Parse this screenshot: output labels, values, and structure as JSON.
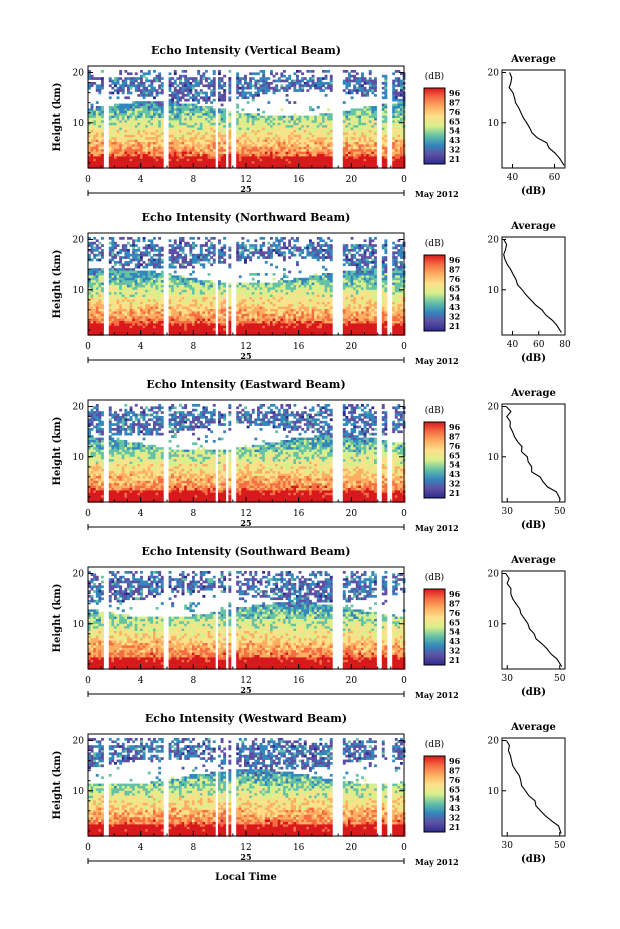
{
  "shared": {
    "colorbar_unit": "(dB)",
    "colorbar_ticks": [
      "96",
      "87",
      "76",
      "65",
      "54",
      "43",
      "32",
      "21"
    ],
    "colorbar_colors": [
      "#d7191c",
      "#f46d43",
      "#fdae61",
      "#fee08b",
      "#d9ef8b",
      "#66c2a5",
      "#3288bd",
      "#5e4fa2",
      "#2b2b8f"
    ],
    "avg_title": "Average",
    "avg_xlabel": "(dB)",
    "ylabel": "Height (km)",
    "x_ticks": [
      "0",
      "4",
      "8",
      "12",
      "16",
      "20",
      "0"
    ],
    "date_day": "25",
    "date_month": "May 2012",
    "xlabel_bottom": "Local Time"
  },
  "chart_data": [
    {
      "type": "heatmap",
      "title": "Echo Intensity (Vertical Beam)",
      "y_ticks": [
        "20",
        "10"
      ],
      "avg_y_ticks": [
        "20",
        "10"
      ],
      "avg_x_ticks": [
        "40",
        "60"
      ],
      "xlim": [
        0,
        24
      ],
      "ylim": [
        1,
        20.5
      ],
      "avg_xlim": [
        35,
        65
      ],
      "gaps": [
        [
          1.0,
          1.4
        ],
        [
          5.7,
          6.1
        ],
        [
          9.5,
          9.8
        ],
        [
          10.3,
          10.6
        ],
        [
          10.8,
          11.1
        ],
        [
          18.5,
          19.2
        ],
        [
          21.8,
          22.2
        ],
        [
          22.7,
          23.0
        ]
      ],
      "avg_profile": [
        [
          64,
          1.5
        ],
        [
          62,
          3
        ],
        [
          60,
          4
        ],
        [
          58,
          5
        ],
        [
          56,
          6
        ],
        [
          52,
          7
        ],
        [
          50,
          8
        ],
        [
          48,
          9
        ],
        [
          46,
          10
        ],
        [
          45,
          11
        ],
        [
          44,
          12
        ],
        [
          43,
          13
        ],
        [
          42,
          14
        ],
        [
          41,
          15
        ],
        [
          40,
          16
        ],
        [
          39,
          17
        ],
        [
          40,
          18
        ],
        [
          39,
          19
        ],
        [
          38,
          20
        ]
      ]
    },
    {
      "type": "heatmap",
      "title": "Echo Intensity (Northward Beam)",
      "y_ticks": [
        "20",
        "10"
      ],
      "avg_y_ticks": [
        "20",
        "10"
      ],
      "avg_x_ticks": [
        "40",
        "60",
        "80"
      ],
      "xlim": [
        0,
        24
      ],
      "ylim": [
        1,
        20.5
      ],
      "avg_xlim": [
        32,
        80
      ],
      "gaps": [
        [
          1.0,
          1.4
        ],
        [
          5.7,
          6.1
        ],
        [
          9.5,
          9.8
        ],
        [
          10.3,
          10.6
        ],
        [
          10.8,
          11.1
        ],
        [
          18.5,
          19.2
        ],
        [
          21.8,
          22.2
        ],
        [
          22.7,
          23.0
        ]
      ],
      "avg_profile": [
        [
          78,
          1.5
        ],
        [
          74,
          3
        ],
        [
          70,
          4
        ],
        [
          66,
          5
        ],
        [
          62,
          6
        ],
        [
          58,
          7
        ],
        [
          54,
          8
        ],
        [
          50,
          9
        ],
        [
          47,
          10
        ],
        [
          44,
          11
        ],
        [
          42,
          12
        ],
        [
          40,
          13
        ],
        [
          38,
          14
        ],
        [
          36,
          15
        ],
        [
          35,
          16
        ],
        [
          34,
          17
        ],
        [
          34,
          18
        ],
        [
          35,
          19
        ],
        [
          33,
          20
        ]
      ]
    },
    {
      "type": "heatmap",
      "title": "Echo Intensity (Eastward Beam)",
      "y_ticks": [
        "20",
        "10"
      ],
      "avg_y_ticks": [
        "20",
        "10"
      ],
      "avg_x_ticks": [
        "30",
        "50"
      ],
      "xlim": [
        0,
        24
      ],
      "ylim": [
        1,
        20.5
      ],
      "avg_xlim": [
        28,
        52
      ],
      "gaps": [
        [
          1.0,
          1.4
        ],
        [
          5.7,
          6.1
        ],
        [
          9.5,
          9.8
        ],
        [
          10.3,
          10.6
        ],
        [
          10.8,
          11.1
        ],
        [
          18.5,
          19.2
        ],
        [
          21.8,
          22.2
        ],
        [
          22.7,
          23.0
        ]
      ],
      "avg_profile": [
        [
          50,
          1.5
        ],
        [
          48,
          3
        ],
        [
          46,
          4
        ],
        [
          44,
          5
        ],
        [
          42,
          6
        ],
        [
          40,
          7
        ],
        [
          39,
          8
        ],
        [
          38,
          9
        ],
        [
          37,
          10
        ],
        [
          36,
          11
        ],
        [
          35,
          12
        ],
        [
          34,
          13
        ],
        [
          33,
          14
        ],
        [
          32,
          15
        ],
        [
          31,
          16
        ],
        [
          31,
          17
        ],
        [
          30,
          18
        ],
        [
          31,
          19
        ],
        [
          30,
          20
        ]
      ]
    },
    {
      "type": "heatmap",
      "title": "Echo Intensity (Southward Beam)",
      "y_ticks": [
        "20",
        "10"
      ],
      "avg_y_ticks": [
        "20",
        "10"
      ],
      "avg_x_ticks": [
        "30",
        "50"
      ],
      "xlim": [
        0,
        24
      ],
      "ylim": [
        1,
        20.5
      ],
      "avg_xlim": [
        28,
        52
      ],
      "gaps": [
        [
          1.0,
          1.4
        ],
        [
          5.7,
          6.1
        ],
        [
          9.5,
          9.8
        ],
        [
          10.3,
          10.6
        ],
        [
          10.8,
          11.1
        ],
        [
          18.5,
          19.2
        ],
        [
          21.8,
          22.2
        ],
        [
          22.7,
          23.0
        ]
      ],
      "avg_profile": [
        [
          51,
          1.5
        ],
        [
          49,
          3
        ],
        [
          47,
          4
        ],
        [
          45,
          5
        ],
        [
          43,
          6
        ],
        [
          41,
          7
        ],
        [
          40,
          8
        ],
        [
          39,
          9
        ],
        [
          38,
          10
        ],
        [
          36,
          11
        ],
        [
          35,
          12
        ],
        [
          34,
          13
        ],
        [
          33,
          14
        ],
        [
          32,
          15
        ],
        [
          31,
          16
        ],
        [
          31,
          17
        ],
        [
          30,
          18
        ],
        [
          31,
          19
        ],
        [
          30,
          20
        ]
      ]
    },
    {
      "type": "heatmap",
      "title": "Echo Intensity (Westward Beam)",
      "y_ticks": [
        "20",
        "10"
      ],
      "avg_y_ticks": [
        "20",
        "10"
      ],
      "avg_x_ticks": [
        "30",
        "50"
      ],
      "xlim": [
        0,
        24
      ],
      "ylim": [
        1,
        20.5
      ],
      "avg_xlim": [
        28,
        52
      ],
      "gaps": [
        [
          1.0,
          1.4
        ],
        [
          5.7,
          6.1
        ],
        [
          9.5,
          9.8
        ],
        [
          10.3,
          10.6
        ],
        [
          10.8,
          11.1
        ],
        [
          18.5,
          19.2
        ],
        [
          21.8,
          22.2
        ],
        [
          22.7,
          23.0
        ]
      ],
      "avg_profile": [
        [
          51,
          1.5
        ],
        [
          49,
          3
        ],
        [
          47,
          4
        ],
        [
          45,
          5
        ],
        [
          43,
          6
        ],
        [
          41,
          7
        ],
        [
          40,
          8
        ],
        [
          38,
          9
        ],
        [
          37,
          10
        ],
        [
          36,
          11
        ],
        [
          35,
          12
        ],
        [
          34,
          13
        ],
        [
          33,
          14
        ],
        [
          32,
          15
        ],
        [
          31,
          16
        ],
        [
          31,
          17
        ],
        [
          30,
          18
        ],
        [
          31,
          19
        ],
        [
          30,
          20
        ]
      ]
    }
  ]
}
